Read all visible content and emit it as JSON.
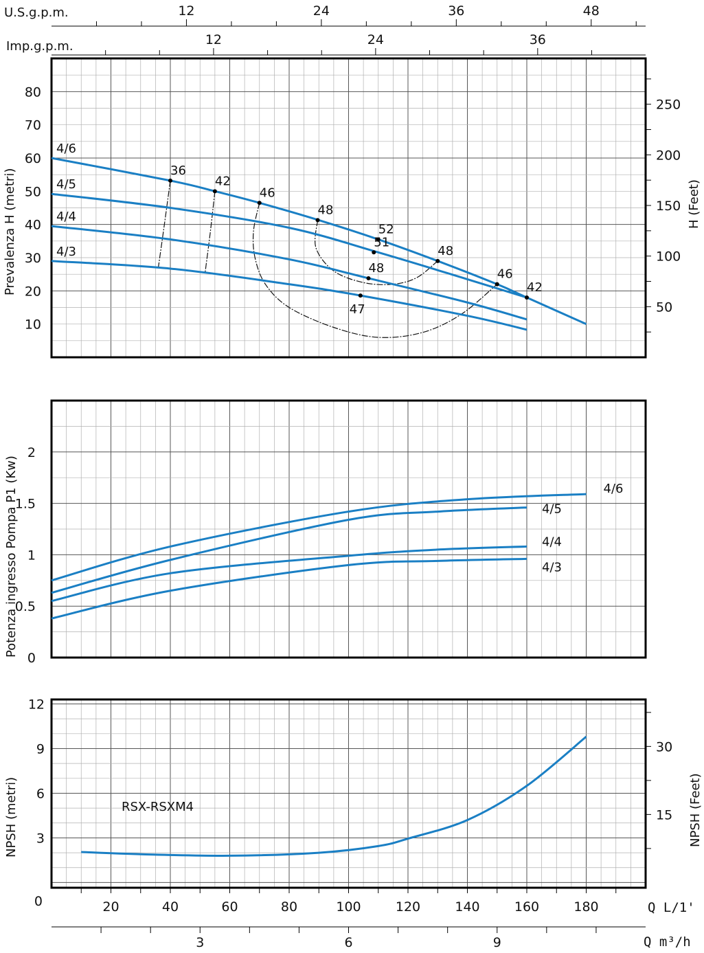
{
  "chart_data": [
    {
      "type": "line",
      "ylabel": "Prevalenza H (metri)",
      "ylabel_right": "H (Feet)",
      "xlim": [
        0,
        200
      ],
      "ylim": [
        0,
        90
      ],
      "yticks": [
        10,
        20,
        30,
        40,
        50,
        60,
        70,
        80
      ],
      "yticks_right": [
        50,
        100,
        150,
        200,
        250
      ],
      "grid": true,
      "top_axes": [
        {
          "label": "U.S.g.p.m.",
          "ticks": [
            "12",
            "24",
            "36",
            "48"
          ],
          "values": [
            12,
            24,
            36,
            48
          ]
        },
        {
          "label": "Imp.g.p.m.",
          "ticks": [
            "12",
            "24",
            "36"
          ],
          "values": [
            12,
            24,
            36
          ]
        }
      ],
      "series": [
        {
          "name": "4/6",
          "x": [
            0,
            40,
            55,
            70,
            90,
            110,
            130,
            150,
            160,
            180
          ],
          "y": [
            60,
            53.2,
            50,
            46.5,
            41.3,
            35.5,
            29,
            22,
            18,
            10
          ]
        },
        {
          "name": "4/5",
          "x": [
            0,
            40,
            80,
            110,
            140,
            160
          ],
          "y": [
            49.2,
            45,
            39,
            31.6,
            23.5,
            18
          ]
        },
        {
          "name": "4/4",
          "x": [
            0,
            40,
            80,
            106.7,
            140,
            160
          ],
          "y": [
            39.5,
            35.5,
            29.5,
            23.8,
            16.5,
            11.4
          ]
        },
        {
          "name": "4/3",
          "x": [
            0,
            40,
            80,
            104,
            140,
            160
          ],
          "y": [
            29,
            26.7,
            22,
            18.6,
            12.5,
            8.3
          ]
        }
      ],
      "efficiency_points": [
        {
          "label": "36",
          "x": 40,
          "y": 53.2
        },
        {
          "label": "42",
          "x": 55,
          "y": 50
        },
        {
          "label": "46",
          "x": 70,
          "y": 46.5
        },
        {
          "label": "48",
          "x": 89.6,
          "y": 41.3
        },
        {
          "label": "52",
          "x": 110,
          "y": 35.5
        },
        {
          "label": "51",
          "x": 108.5,
          "y": 31.6
        },
        {
          "label": "48",
          "x": 106.7,
          "y": 23.8
        },
        {
          "label": "47",
          "x": 104,
          "y": 18.6
        },
        {
          "label": "48",
          "x": 130,
          "y": 29
        },
        {
          "label": "46",
          "x": 150,
          "y": 22
        },
        {
          "label": "42",
          "x": 160,
          "y": 18
        }
      ],
      "efficiency_curves": [
        {
          "label": "36",
          "x": [
            40,
            38,
            36
          ],
          "y": [
            53.2,
            40,
            27.3
          ]
        },
        {
          "label": "42",
          "x": [
            55,
            53.5,
            51.7
          ],
          "y": [
            50,
            38,
            25.4
          ]
        },
        {
          "label": "46",
          "x": [
            70,
            68,
            68.5,
            72,
            80,
            95,
            110,
            125,
            138,
            150
          ],
          "y": [
            46.5,
            38,
            30,
            22,
            15,
            9,
            6,
            7.5,
            13,
            22
          ]
        },
        {
          "label": "48",
          "x": [
            89.6,
            89,
            95,
            105,
            115,
            123,
            130
          ],
          "y": [
            41.3,
            33,
            26,
            22.5,
            22,
            24,
            29
          ]
        }
      ]
    },
    {
      "type": "line",
      "ylabel": "Potenza ingresso Pompa P1 (Kw)",
      "xlim": [
        0,
        200
      ],
      "ylim": [
        0,
        2.5
      ],
      "yticks": [
        "0",
        "0.5",
        "1",
        "1.5",
        "2"
      ],
      "grid": true,
      "series": [
        {
          "name": "4/6",
          "x": [
            0,
            40,
            100,
            140,
            180
          ],
          "y": [
            0.75,
            1.08,
            1.42,
            1.54,
            1.59
          ]
        },
        {
          "name": "4/5",
          "x": [
            0,
            40,
            100,
            130,
            160
          ],
          "y": [
            0.63,
            0.95,
            1.34,
            1.42,
            1.46
          ]
        },
        {
          "name": "4/4",
          "x": [
            0,
            40,
            100,
            130,
            160
          ],
          "y": [
            0.55,
            0.82,
            0.99,
            1.05,
            1.08
          ]
        },
        {
          "name": "4/3",
          "x": [
            0,
            40,
            100,
            130,
            160
          ],
          "y": [
            0.38,
            0.65,
            0.9,
            0.94,
            0.96
          ]
        }
      ]
    },
    {
      "type": "line",
      "ylabel": "NPSH (metri)",
      "ylabel_right": "NPSH (Feet)",
      "annotation": "RSX-RSXM4",
      "xlim": [
        0,
        200
      ],
      "ylim": [
        -0.35,
        12.3
      ],
      "yticks": [
        "0",
        "3",
        "6",
        "9",
        "12"
      ],
      "yticks_right": [
        "15",
        "30"
      ],
      "grid": true,
      "xlabel": "Q L/1'",
      "xticks": [
        "20",
        "40",
        "60",
        "80",
        "100",
        "120",
        "140",
        "160",
        "180"
      ],
      "xlabel2": "Q m³/h",
      "xticks2": [
        "3",
        "6",
        "9"
      ],
      "series": [
        {
          "x": [
            10,
            30,
            60,
            90,
            110,
            120,
            140,
            160,
            180
          ],
          "y": [
            2.05,
            1.9,
            1.8,
            2.0,
            2.45,
            2.95,
            4.2,
            6.5,
            9.8
          ]
        }
      ]
    }
  ],
  "colors": {
    "curve": "#1a7fc4",
    "grid_minor": "#b0b0b0",
    "grid_major": "#555555",
    "frame": "#000000"
  }
}
